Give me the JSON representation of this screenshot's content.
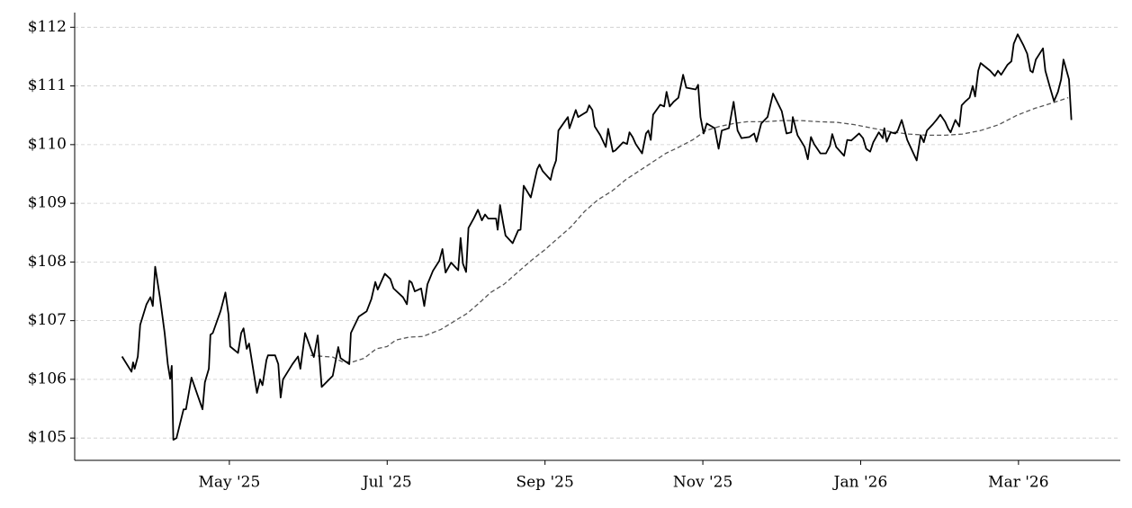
{
  "chart_data": {
    "type": "line",
    "xlim": [
      3.04,
      16.29
    ],
    "ylim": [
      104.62,
      112.25
    ],
    "xticks": [
      {
        "value": 5,
        "label": "May '25"
      },
      {
        "value": 7,
        "label": "Jul '25"
      },
      {
        "value": 9,
        "label": "Sep '25"
      },
      {
        "value": 11,
        "label": "Nov '25"
      },
      {
        "value": 13,
        "label": "Jan '26"
      },
      {
        "value": 15,
        "label": "Mar '26"
      }
    ],
    "yticks": [
      {
        "value": 105,
        "label": "$105"
      },
      {
        "value": 106,
        "label": "$106"
      },
      {
        "value": 107,
        "label": "$107"
      },
      {
        "value": 108,
        "label": "$108"
      },
      {
        "value": 109,
        "label": "$109"
      },
      {
        "value": 110,
        "label": "$110"
      },
      {
        "value": 111,
        "label": "$111"
      },
      {
        "value": 112,
        "label": "$112"
      }
    ],
    "grid": true,
    "series": [
      {
        "color": "#000000",
        "linestyle": "solid",
        "x": [
          3.64,
          3.76,
          3.78,
          3.8,
          3.84,
          3.87,
          3.95,
          4.0,
          4.03,
          4.06,
          4.12,
          4.18,
          4.22,
          4.25,
          4.27,
          4.29,
          4.33,
          4.42,
          4.45,
          4.52,
          4.6,
          4.66,
          4.69,
          4.74,
          4.76,
          4.79,
          4.89,
          4.95,
          4.99,
          5.01,
          5.11,
          5.15,
          5.18,
          5.22,
          5.25,
          5.35,
          5.39,
          5.42,
          5.47,
          5.49,
          5.58,
          5.62,
          5.65,
          5.68,
          5.8,
          5.87,
          5.9,
          5.96,
          6.07,
          6.12,
          6.17,
          6.31,
          6.38,
          6.41,
          6.52,
          6.54,
          6.64,
          6.74,
          6.8,
          6.85,
          6.88,
          6.97,
          7.04,
          7.08,
          7.2,
          7.25,
          7.28,
          7.31,
          7.35,
          7.43,
          7.47,
          7.51,
          7.58,
          7.66,
          7.7,
          7.74,
          7.81,
          7.9,
          7.93,
          7.96,
          8.0,
          8.03,
          8.1,
          8.15,
          8.2,
          8.24,
          8.28,
          8.38,
          8.4,
          8.43,
          8.47,
          8.5,
          8.59,
          8.66,
          8.69,
          8.73,
          8.82,
          8.9,
          8.93,
          8.97,
          9.07,
          9.1,
          9.14,
          9.17,
          9.29,
          9.31,
          9.39,
          9.42,
          9.53,
          9.56,
          9.6,
          9.63,
          9.7,
          9.77,
          9.8,
          9.86,
          9.89,
          9.99,
          10.04,
          10.07,
          10.11,
          10.15,
          10.23,
          10.28,
          10.31,
          10.34,
          10.37,
          10.46,
          10.51,
          10.54,
          10.58,
          10.63,
          10.69,
          10.75,
          10.79,
          10.91,
          10.94,
          10.97,
          11.01,
          11.05,
          11.15,
          11.2,
          11.24,
          11.33,
          11.39,
          11.44,
          11.49,
          11.59,
          11.65,
          11.68,
          11.74,
          11.82,
          11.89,
          12.0,
          12.06,
          12.12,
          12.14,
          12.2,
          12.29,
          12.33,
          12.37,
          12.41,
          12.49,
          12.56,
          12.61,
          12.64,
          12.69,
          12.79,
          12.83,
          12.88,
          12.98,
          13.03,
          13.07,
          13.12,
          13.16,
          13.23,
          13.28,
          13.3,
          13.33,
          13.38,
          13.44,
          13.47,
          13.52,
          13.59,
          13.71,
          13.76,
          13.8,
          13.84,
          13.91,
          13.96,
          14.01,
          14.07,
          14.11,
          14.14,
          14.2,
          14.25,
          14.28,
          14.33,
          14.38,
          14.42,
          14.45,
          14.49,
          14.52,
          14.64,
          14.7,
          14.74,
          14.78,
          14.86,
          14.91,
          14.94,
          14.99,
          15.06,
          15.11,
          15.15,
          15.18,
          15.22,
          15.31,
          15.34,
          15.4,
          15.45,
          15.5,
          15.54,
          15.57,
          15.64,
          15.67
        ],
        "values": [
          106.39,
          106.13,
          106.29,
          106.18,
          106.39,
          106.93,
          107.28,
          107.4,
          107.25,
          107.92,
          107.4,
          106.79,
          106.26,
          106.01,
          106.23,
          104.97,
          105.0,
          105.49,
          105.49,
          106.03,
          105.72,
          105.49,
          105.95,
          106.18,
          106.76,
          106.79,
          107.17,
          107.48,
          107.1,
          106.56,
          106.45,
          106.79,
          106.87,
          106.52,
          106.61,
          105.77,
          106.0,
          105.9,
          106.33,
          106.41,
          106.41,
          106.26,
          105.69,
          106.0,
          106.26,
          106.39,
          106.18,
          106.79,
          106.38,
          106.75,
          105.87,
          106.06,
          106.55,
          106.36,
          106.26,
          106.79,
          107.07,
          107.16,
          107.37,
          107.66,
          107.53,
          107.8,
          107.71,
          107.55,
          107.4,
          107.28,
          107.68,
          107.65,
          107.5,
          107.55,
          107.25,
          107.62,
          107.85,
          108.02,
          108.22,
          107.82,
          107.99,
          107.86,
          108.41,
          107.97,
          107.83,
          108.58,
          108.75,
          108.89,
          108.71,
          108.81,
          108.74,
          108.74,
          108.55,
          108.97,
          108.66,
          108.45,
          108.32,
          108.54,
          108.55,
          109.3,
          109.1,
          109.58,
          109.66,
          109.55,
          109.4,
          109.58,
          109.73,
          110.24,
          110.47,
          110.28,
          110.59,
          110.47,
          110.56,
          110.67,
          110.59,
          110.31,
          110.16,
          109.96,
          110.27,
          109.88,
          109.9,
          110.04,
          110.01,
          110.21,
          110.13,
          110.01,
          109.85,
          110.19,
          110.24,
          110.08,
          110.51,
          110.68,
          110.65,
          110.9,
          110.65,
          110.73,
          110.8,
          111.19,
          110.97,
          110.94,
          111.02,
          110.47,
          110.19,
          110.36,
          110.28,
          109.93,
          110.24,
          110.28,
          110.73,
          110.24,
          110.11,
          110.13,
          110.19,
          110.05,
          110.36,
          110.47,
          110.87,
          110.57,
          110.19,
          110.21,
          110.47,
          110.16,
          109.96,
          109.75,
          110.13,
          110.01,
          109.85,
          109.85,
          109.98,
          110.18,
          109.96,
          109.81,
          110.08,
          110.07,
          110.19,
          110.11,
          109.93,
          109.88,
          110.04,
          110.21,
          110.11,
          110.28,
          110.05,
          110.21,
          110.19,
          110.24,
          110.42,
          110.08,
          109.73,
          110.16,
          110.04,
          110.24,
          110.34,
          110.42,
          110.51,
          110.39,
          110.27,
          110.21,
          110.42,
          110.31,
          110.67,
          110.74,
          110.8,
          111.0,
          110.82,
          111.26,
          111.39,
          111.26,
          111.17,
          111.26,
          111.19,
          111.36,
          111.42,
          111.72,
          111.88,
          111.7,
          111.55,
          111.26,
          111.23,
          111.45,
          111.64,
          111.26,
          110.97,
          110.74,
          110.9,
          111.11,
          111.45,
          111.11,
          110.42
        ]
      },
      {
        "color": "#555555",
        "linestyle": "dashed",
        "x": [
          6.03,
          6.2,
          6.31,
          6.43,
          6.57,
          6.71,
          6.86,
          7.0,
          7.11,
          7.28,
          7.45,
          7.68,
          7.85,
          8.02,
          8.19,
          8.31,
          8.48,
          8.65,
          8.82,
          8.99,
          9.16,
          9.33,
          9.5,
          9.67,
          9.85,
          10.02,
          10.19,
          10.36,
          10.53,
          10.7,
          10.87,
          11.04,
          11.21,
          11.39,
          11.56,
          11.78,
          12.01,
          12.24,
          12.47,
          12.7,
          12.92,
          13.15,
          13.38,
          13.61,
          13.84,
          14.07,
          14.29,
          14.52,
          14.75,
          14.98,
          15.21,
          15.43,
          15.63
        ],
        "values": [
          106.41,
          106.39,
          106.38,
          106.3,
          106.3,
          106.36,
          106.52,
          106.56,
          106.67,
          106.72,
          106.73,
          106.85,
          106.99,
          107.13,
          107.33,
          107.48,
          107.62,
          107.82,
          108.02,
          108.2,
          108.4,
          108.6,
          108.86,
          109.06,
          109.21,
          109.4,
          109.55,
          109.7,
          109.85,
          109.96,
          110.08,
          110.24,
          110.31,
          110.36,
          110.39,
          110.39,
          110.41,
          110.41,
          110.39,
          110.38,
          110.34,
          110.28,
          110.22,
          110.18,
          110.16,
          110.16,
          110.18,
          110.24,
          110.34,
          110.5,
          110.62,
          110.71,
          110.8
        ]
      }
    ]
  }
}
